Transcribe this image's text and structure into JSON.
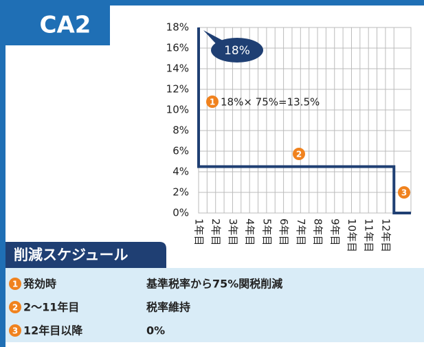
{
  "chart_data": {
    "type": "line",
    "badge": "CA2",
    "categories": [
      "1年目",
      "2年目",
      "3年目",
      "4年目",
      "5年目",
      "6年目",
      "7年目",
      "8年目",
      "9年目",
      "10年目",
      "11年目",
      "12年目"
    ],
    "series": [
      {
        "color": "#1f3f73",
        "x": [
          0,
          0,
          11.5,
          11.5,
          12.5
        ],
        "values": [
          18,
          4.5,
          4.5,
          0,
          0
        ]
      }
    ],
    "xlim": [
      0,
      12.5
    ],
    "ylim": [
      0,
      18
    ],
    "yticks": [
      {
        "value": 0,
        "label": "0%"
      },
      {
        "value": 2,
        "label": "2%"
      },
      {
        "value": 4,
        "label": "4%"
      },
      {
        "value": 6,
        "label": "6%"
      },
      {
        "value": 8,
        "label": "8%"
      },
      {
        "value": 10,
        "label": "10%"
      },
      {
        "value": 12,
        "label": "12%"
      },
      {
        "value": 14,
        "label": "14%"
      },
      {
        "value": 16,
        "label": "16%"
      },
      {
        "value": 18,
        "label": "18%"
      }
    ],
    "grid": true,
    "callout": "18%",
    "annotations": [
      {
        "marker": "1",
        "text": "18%× 75%=13.5%"
      },
      {
        "marker": "2"
      },
      {
        "marker": "3"
      }
    ],
    "schedule": {
      "title": "削減スケジュール",
      "rows": [
        {
          "marker": "1",
          "period": "発効時",
          "detail": "基準税率から75%関税削減"
        },
        {
          "marker": "2",
          "period": "2〜11年目",
          "detail": "税率維持"
        },
        {
          "marker": "3",
          "period": "12年目以降",
          "detail": "0%"
        }
      ]
    }
  }
}
